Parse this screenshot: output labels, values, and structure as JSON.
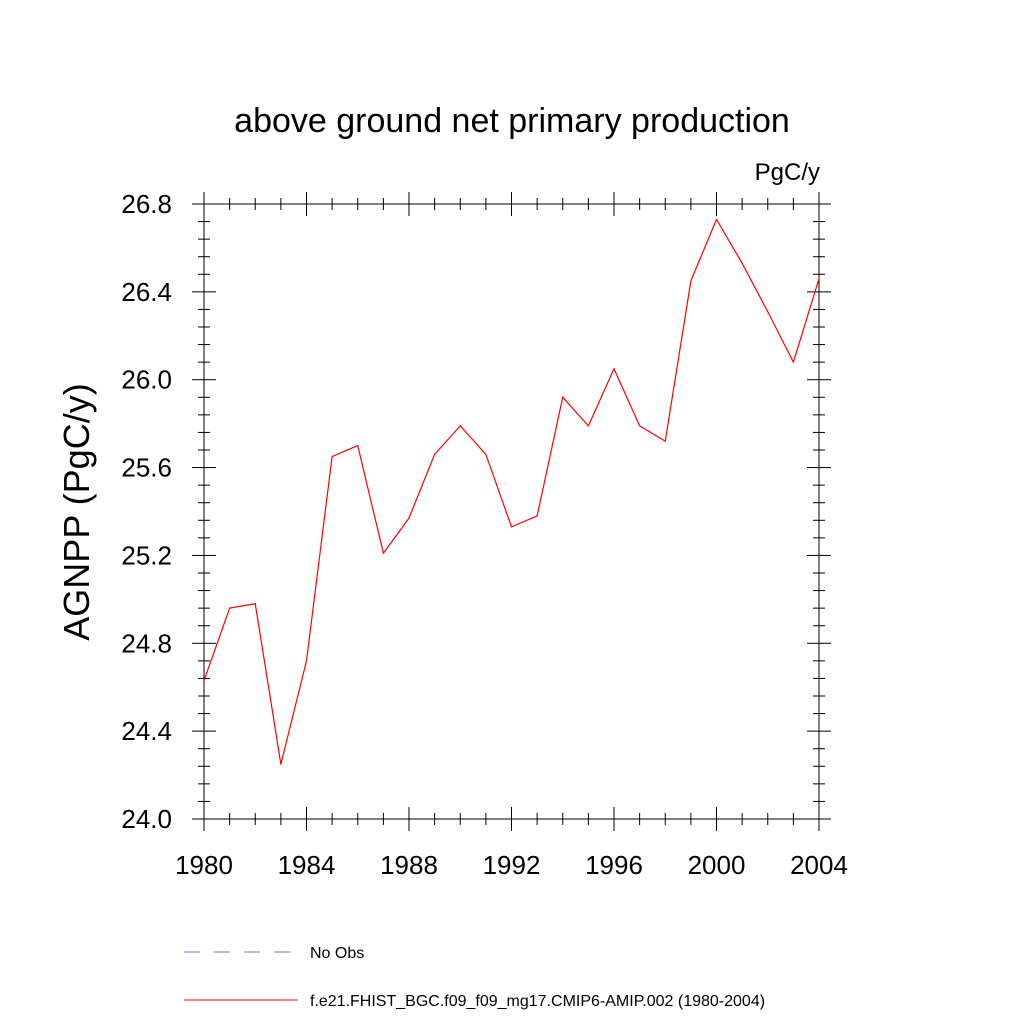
{
  "chart_data": {
    "type": "line",
    "title": "above ground net primary production",
    "units": "PgC/y",
    "ylabel": "AGNPP  (PgC/y)",
    "xlabel": "",
    "xlim": [
      1980,
      2004
    ],
    "ylim": [
      24.0,
      26.8
    ],
    "x_ticks": [
      1980,
      1984,
      1988,
      1992,
      1996,
      2000,
      2004
    ],
    "y_ticks": [
      "24.0",
      "24.4",
      "24.8",
      "25.2",
      "25.6",
      "26.0",
      "26.4",
      "26.8"
    ],
    "grid": false,
    "legend_position": "bottom",
    "series": [
      {
        "name": "No Obs",
        "color": "#7c6fc4",
        "dash": "dashed",
        "x": [],
        "y": []
      },
      {
        "name": "f.e21.FHIST_BGC.f09_f09_mg17.CMIP6-AMIP.002 (1980-2004)",
        "color": "#ff0000",
        "dash": "solid",
        "x": [
          1980,
          1981,
          1982,
          1983,
          1984,
          1985,
          1986,
          1987,
          1988,
          1989,
          1990,
          1991,
          1992,
          1993,
          1994,
          1995,
          1996,
          1997,
          1998,
          1999,
          2000,
          2001,
          2002,
          2003,
          2004
        ],
        "y": [
          24.63,
          24.96,
          24.98,
          24.25,
          24.72,
          25.65,
          25.7,
          25.21,
          25.37,
          25.66,
          25.79,
          25.66,
          25.33,
          25.38,
          25.92,
          25.79,
          26.05,
          25.79,
          25.72,
          26.45,
          26.73,
          26.53,
          26.31,
          26.08,
          26.46
        ]
      }
    ]
  }
}
